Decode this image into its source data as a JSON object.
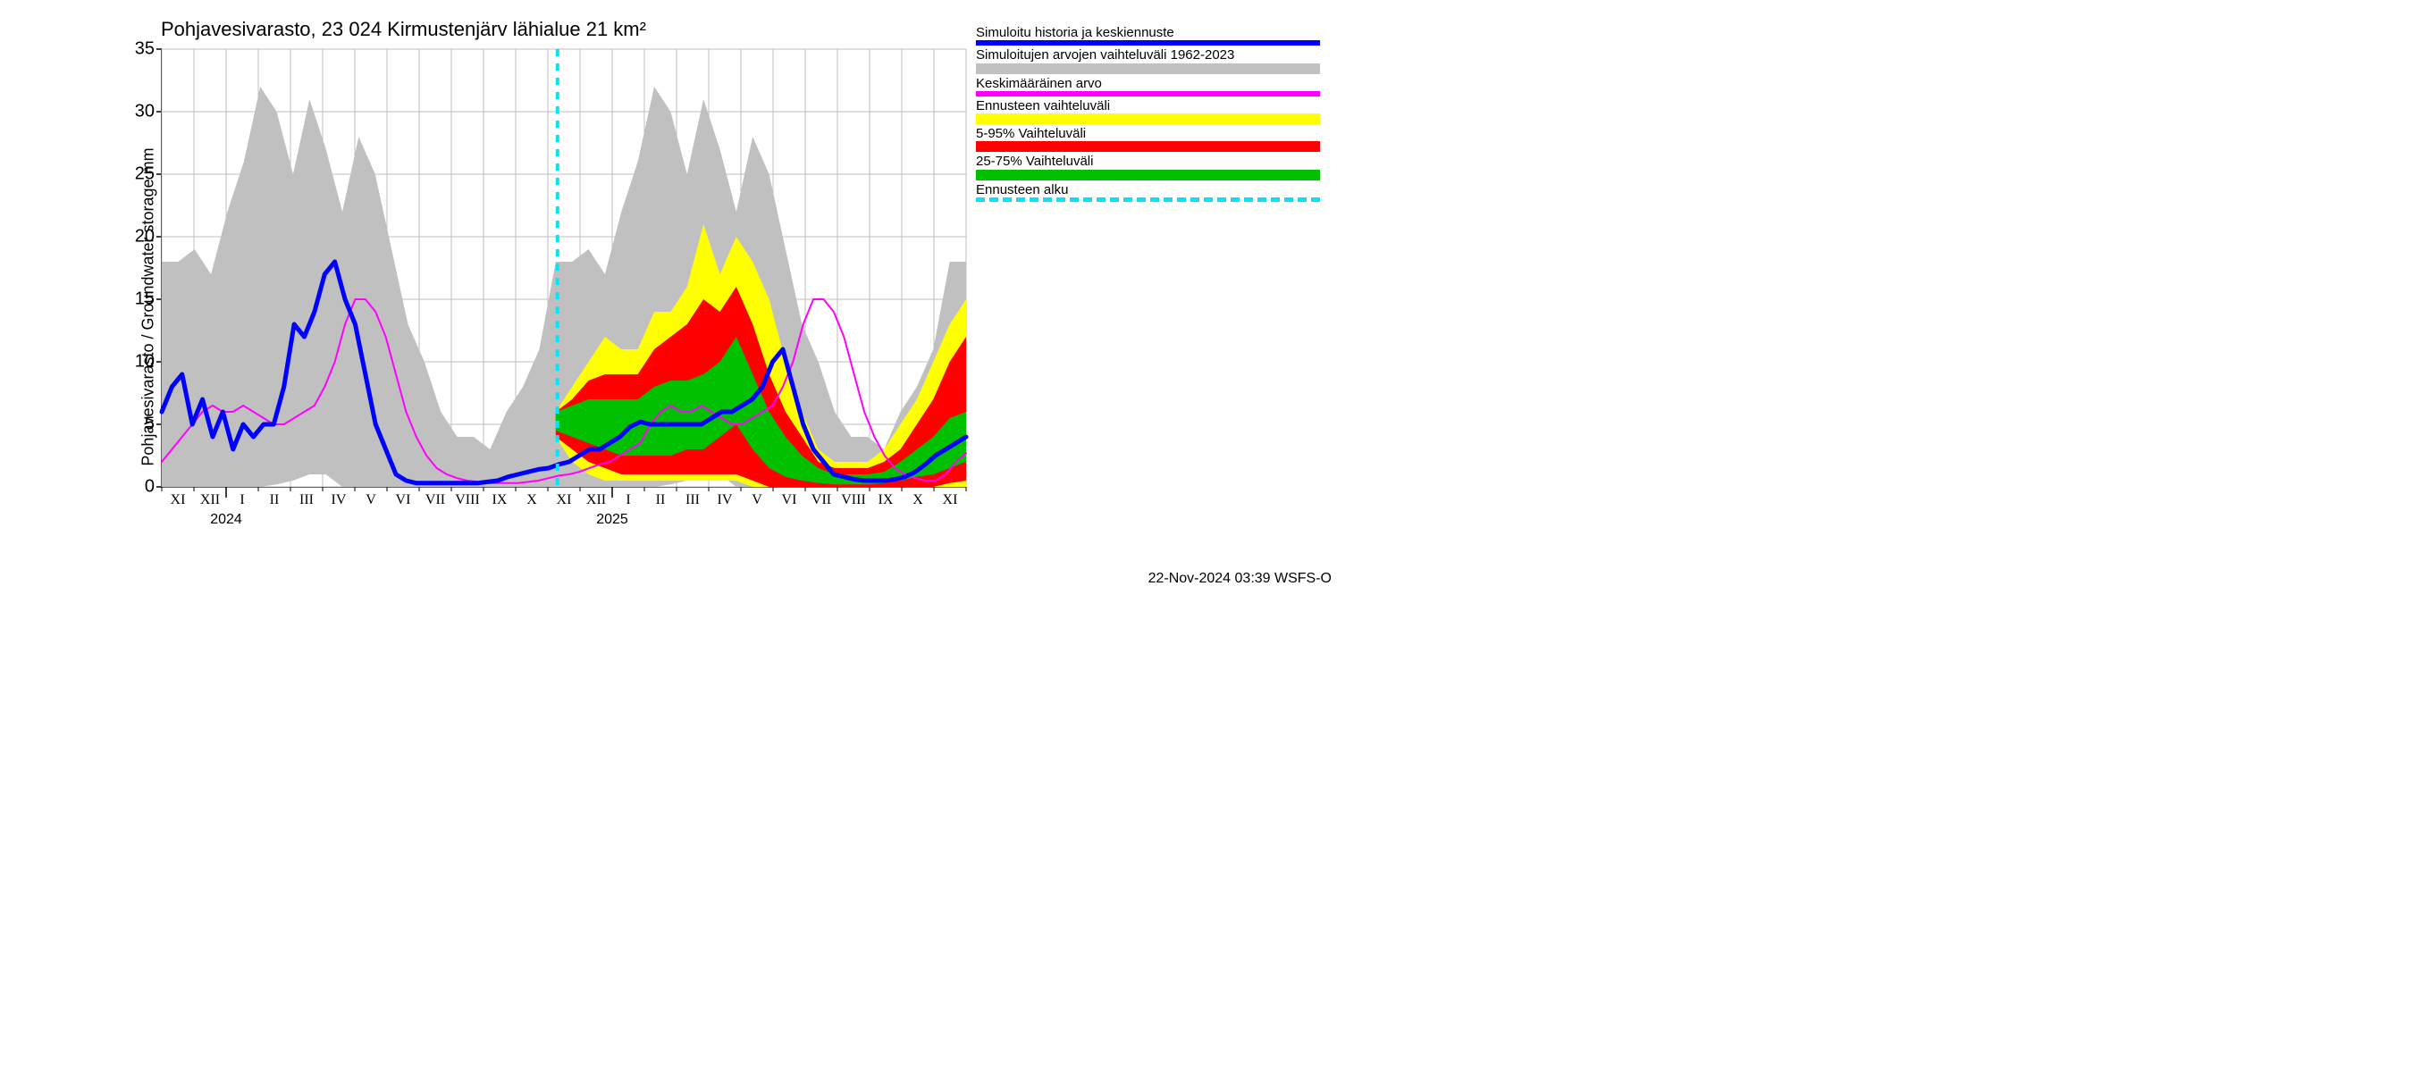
{
  "title": "Pohjavesivarasto, 23 024 Kirmustenjärv lähialue 21 km²",
  "y_axis_label": "Pohjavesivarasto / Groundwater storage    mm",
  "y_unit_top": "mm",
  "timestamp": "22-Nov-2024 03:39 WSFS-O",
  "plot": {
    "ylim": [
      0,
      35
    ],
    "ytick_step": 5,
    "yticks": [
      0,
      5,
      10,
      15,
      20,
      25,
      30,
      35
    ],
    "x_months": [
      "XI",
      "XII",
      "I",
      "II",
      "III",
      "IV",
      "V",
      "VI",
      "VII",
      "VIII",
      "IX",
      "X",
      "XI",
      "XII",
      "I",
      "II",
      "III",
      "IV",
      "V",
      "VI",
      "VII",
      "VIII",
      "IX",
      "X",
      "XI"
    ],
    "year_labels": [
      {
        "text": "2024",
        "at_month_index": 2
      },
      {
        "text": "2025",
        "at_month_index": 14
      }
    ],
    "n_months": 25,
    "forecast_start_month_index": 12.3,
    "background_color": "#ffffff",
    "grid_color": "#bfbfbf",
    "grid_width": 1,
    "series": {
      "range_band": {
        "color": "#c0c0c0",
        "upper": [
          18,
          18,
          19,
          17,
          22,
          26,
          32,
          30,
          25,
          31,
          27,
          22,
          28,
          25,
          19,
          13,
          10,
          6,
          4,
          4,
          3,
          6,
          8,
          11,
          18,
          18,
          19,
          17,
          22,
          26,
          32,
          30,
          25,
          31,
          27,
          22,
          28,
          25,
          19,
          13,
          10,
          6,
          4,
          4,
          3,
          6,
          8,
          11,
          18,
          18
        ],
        "lower": [
          0,
          0,
          0,
          0,
          0,
          0,
          0,
          0.2,
          0.5,
          1,
          1,
          0,
          0,
          0,
          0,
          0,
          0,
          0,
          0,
          0,
          0,
          0,
          0,
          0,
          0,
          0,
          0,
          0,
          0,
          0,
          0,
          0.2,
          0.5,
          1,
          1,
          0,
          0,
          0,
          0,
          0,
          0,
          0,
          0,
          0,
          0,
          0,
          0,
          0,
          0,
          0
        ]
      },
      "yellow_band": {
        "color": "#ffff00",
        "upper": [
          null,
          null,
          null,
          null,
          null,
          null,
          null,
          null,
          null,
          null,
          null,
          null,
          null,
          null,
          null,
          null,
          null,
          null,
          null,
          null,
          null,
          null,
          null,
          null,
          6,
          8,
          10,
          12,
          11,
          11,
          14,
          14,
          16,
          21,
          17,
          20,
          18,
          15,
          10,
          6,
          3,
          2,
          2,
          2,
          3,
          5,
          7,
          10,
          13,
          15
        ],
        "lower": [
          null,
          null,
          null,
          null,
          null,
          null,
          null,
          null,
          null,
          null,
          null,
          null,
          null,
          null,
          null,
          null,
          null,
          null,
          null,
          null,
          null,
          null,
          null,
          null,
          4,
          2,
          1,
          0.5,
          0.5,
          0.5,
          0.5,
          0.5,
          0.5,
          0.5,
          0.5,
          0.5,
          0,
          0,
          0,
          0,
          0,
          0,
          0,
          0,
          0,
          0,
          0,
          0,
          0,
          0
        ]
      },
      "red_band": {
        "color": "#ff0000",
        "upper": [
          null,
          null,
          null,
          null,
          null,
          null,
          null,
          null,
          null,
          null,
          null,
          null,
          null,
          null,
          null,
          null,
          null,
          null,
          null,
          null,
          null,
          null,
          null,
          null,
          6,
          7,
          8.5,
          9,
          9,
          9,
          11,
          12,
          13,
          15,
          14,
          16,
          13,
          9,
          6,
          4,
          2,
          1.5,
          1.5,
          1.5,
          2,
          3,
          5,
          7,
          10,
          12
        ],
        "lower": [
          null,
          null,
          null,
          null,
          null,
          null,
          null,
          null,
          null,
          null,
          null,
          null,
          null,
          null,
          null,
          null,
          null,
          null,
          null,
          null,
          null,
          null,
          null,
          null,
          4,
          3,
          2,
          1.5,
          1,
          1,
          1,
          1,
          1,
          1,
          1,
          1,
          0.5,
          0,
          0,
          0,
          0,
          0,
          0,
          0,
          0,
          0,
          0,
          0,
          0.3,
          0.5
        ]
      },
      "green_band": {
        "color": "#00c000",
        "upper": [
          null,
          null,
          null,
          null,
          null,
          null,
          null,
          null,
          null,
          null,
          null,
          null,
          null,
          null,
          null,
          null,
          null,
          null,
          null,
          null,
          null,
          null,
          null,
          null,
          6,
          6.5,
          7,
          7,
          7,
          7,
          8,
          8.5,
          8.5,
          9,
          10,
          12,
          9,
          6,
          4,
          2.5,
          1.5,
          1,
          1,
          1,
          1.2,
          2,
          3,
          4,
          5.5,
          6
        ],
        "lower": [
          null,
          null,
          null,
          null,
          null,
          null,
          null,
          null,
          null,
          null,
          null,
          null,
          null,
          null,
          null,
          null,
          null,
          null,
          null,
          null,
          null,
          null,
          null,
          null,
          4.5,
          4,
          3.5,
          3,
          2.5,
          2.5,
          2.5,
          2.5,
          3,
          3,
          4,
          5,
          3,
          1.5,
          0.8,
          0.5,
          0.3,
          0.2,
          0.2,
          0.2,
          0.3,
          0.5,
          0.8,
          1,
          1.5,
          2
        ]
      },
      "blue_line": {
        "color": "#0000ff",
        "width": 5,
        "y": [
          6,
          8,
          9,
          5,
          7,
          4,
          6,
          3,
          5,
          4,
          5,
          5,
          8,
          13,
          12,
          14,
          17,
          18,
          15,
          13,
          9,
          5,
          3,
          1,
          0.5,
          0.3,
          0.3,
          0.3,
          0.3,
          0.3,
          0.3,
          0.3,
          0.4,
          0.5,
          0.8,
          1,
          1.2,
          1.4,
          1.5,
          1.8,
          2,
          2.5,
          3,
          3,
          3.5,
          4,
          4.8,
          5.2,
          5,
          5,
          5,
          5,
          5,
          5,
          5.5,
          6,
          6,
          6.5,
          7,
          8,
          10,
          11,
          8,
          5,
          3,
          2,
          1,
          0.8,
          0.6,
          0.5,
          0.5,
          0.5,
          0.6,
          0.8,
          1.2,
          1.8,
          2.5,
          3,
          3.5,
          4
        ]
      },
      "magenta_line": {
        "color": "#ff00ff",
        "width": 2,
        "y": [
          2,
          3,
          4,
          5,
          6,
          6.5,
          6,
          6,
          6.5,
          6,
          5.5,
          5,
          5,
          5.5,
          6,
          6.5,
          8,
          10,
          13,
          15,
          15,
          14,
          12,
          9,
          6,
          4,
          2.5,
          1.5,
          1,
          0.7,
          0.5,
          0.4,
          0.3,
          0.3,
          0.3,
          0.3,
          0.4,
          0.5,
          0.7,
          0.9,
          1,
          1.2,
          1.5,
          1.8,
          2,
          2.5,
          3,
          3.5,
          5,
          6,
          6.5,
          6,
          6,
          6.5,
          6,
          5.5,
          5,
          5,
          5.5,
          6,
          6.5,
          8,
          10,
          13,
          15,
          15,
          14,
          12,
          9,
          6,
          4,
          2.5,
          1.5,
          1,
          0.7,
          0.5,
          0.5,
          1,
          2,
          2.7
        ]
      }
    }
  },
  "legend": {
    "items": [
      {
        "label": "Simuloitu historia ja keskiennuste",
        "color": "#0000ff",
        "type": "line"
      },
      {
        "label": "Simuloitujen arvojen vaihteluväli 1962-2023",
        "color": "#c0c0c0",
        "type": "fill"
      },
      {
        "label": "Keskimääräinen arvo",
        "color": "#ff00ff",
        "type": "line"
      },
      {
        "label": "Ennusteen vaihteluväli",
        "color": "#ffff00",
        "type": "fill"
      },
      {
        "label": "5-95% Vaihteluväli",
        "color": "#ff0000",
        "type": "fill"
      },
      {
        "label": "25-75% Vaihteluväli",
        "color": "#00c000",
        "type": "fill"
      },
      {
        "label": "Ennusteen alku",
        "color": "#00e5ff",
        "type": "dash"
      }
    ]
  },
  "forecast_line": {
    "color": "#00e5ff",
    "dash": "6,6",
    "width": 4
  }
}
